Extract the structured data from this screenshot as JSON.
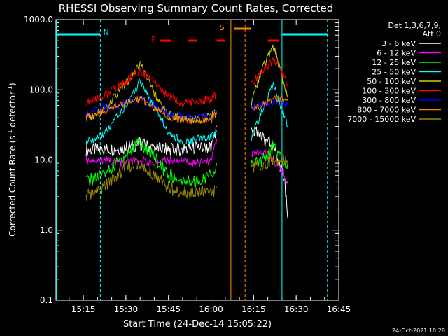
{
  "chart_data": {
    "type": "line",
    "title": "RHESSI Observing Summary Count Rates, Corrected",
    "xlabel": "Start Time (24-Dec-14 15:05:22)",
    "ylabel": "Corrected Count Rate (s",
    "ylabel_sup": "-1",
    "ylabel_mid": " detector",
    "ylabel_end": ")",
    "footer": "24-Oct-2021 10:28",
    "y_scale": "log",
    "ylim": [
      0.1,
      1000
    ],
    "xlim": [
      "15:05:22",
      "16:45"
    ],
    "x_ticks": [
      "15:15",
      "15:30",
      "15:45",
      "16:00",
      "16:15",
      "16:30",
      "16:45"
    ],
    "y_ticks": [
      "0.1",
      "1.0",
      "10.0",
      "100.0",
      "1000.0"
    ],
    "legend_header": "Det 1,3,6,7,9,",
    "legend_header2": "Att 0",
    "legend_position": "right",
    "series": [
      {
        "name": "3 - 6 keV",
        "color": "#ffffff",
        "x": [
          "15:16",
          "15:22",
          "15:30",
          "15:35",
          "15:40",
          "15:45",
          "15:50",
          "15:55",
          "16:00",
          "16:02",
          "16:14",
          "16:18",
          "16:22",
          "16:26",
          "16:27"
        ],
        "y": [
          14,
          14,
          15,
          17,
          15,
          14,
          14,
          15,
          15,
          30,
          28,
          20,
          16,
          5,
          1.5
        ]
      },
      {
        "name": "6 - 12 keV",
        "color": "#ff00ff",
        "x": [
          "15:16",
          "15:22",
          "15:30",
          "15:35",
          "15:40",
          "15:45",
          "15:50",
          "15:55",
          "16:00",
          "16:02",
          "16:14",
          "16:18",
          "16:22",
          "16:26",
          "16:27"
        ],
        "y": [
          10,
          10,
          9,
          10,
          9,
          10,
          10,
          9,
          10,
          20,
          12,
          14,
          10,
          6,
          5
        ]
      },
      {
        "name": "12 - 25 keV",
        "color": "#00ff00",
        "x": [
          "15:16",
          "15:22",
          "15:30",
          "15:35",
          "15:40",
          "15:45",
          "15:50",
          "15:55",
          "16:00",
          "16:02",
          "16:14",
          "16:18",
          "16:22",
          "16:26",
          "16:27"
        ],
        "y": [
          5,
          6,
          12,
          18,
          11,
          6,
          5,
          5,
          6,
          9,
          8,
          10,
          16,
          9,
          9
        ]
      },
      {
        "name": "25 - 50 keV",
        "color": "#00ffff",
        "x": [
          "15:16",
          "15:22",
          "15:30",
          "15:35",
          "15:40",
          "15:45",
          "15:50",
          "15:55",
          "16:00",
          "16:02",
          "16:14",
          "16:18",
          "16:22",
          "16:26",
          "16:27"
        ],
        "y": [
          18,
          22,
          60,
          130,
          60,
          25,
          18,
          20,
          22,
          25,
          20,
          50,
          120,
          40,
          30
        ]
      },
      {
        "name": "50 - 100 keV",
        "color": "#d2d200",
        "x": [
          "15:16",
          "15:22",
          "15:30",
          "15:35",
          "15:40",
          "15:45",
          "15:50",
          "15:55",
          "16:00",
          "16:02",
          "16:14",
          "16:18",
          "16:22",
          "16:26",
          "16:27"
        ],
        "y": [
          38,
          50,
          120,
          240,
          90,
          45,
          38,
          38,
          42,
          50,
          60,
          200,
          420,
          110,
          80
        ]
      },
      {
        "name": "100 - 300 keV",
        "color": "#ff0000",
        "x": [
          "15:16",
          "15:22",
          "15:30",
          "15:35",
          "15:40",
          "15:45",
          "15:50",
          "15:55",
          "16:00",
          "16:02",
          "16:14",
          "16:18",
          "16:22",
          "16:26",
          "16:27"
        ],
        "y": [
          65,
          80,
          130,
          190,
          130,
          80,
          65,
          68,
          75,
          85,
          120,
          180,
          260,
          150,
          120
        ]
      },
      {
        "name": "300 - 800 keV",
        "color": "#0000ff",
        "x": [
          "15:16",
          "15:22",
          "15:30",
          "15:35",
          "15:40",
          "15:45",
          "15:50",
          "15:55",
          "16:00",
          "16:02",
          "16:14",
          "16:18",
          "16:22",
          "16:26",
          "16:27"
        ],
        "y": [
          45,
          55,
          65,
          75,
          60,
          45,
          42,
          40,
          42,
          45,
          55,
          62,
          68,
          65,
          63
        ]
      },
      {
        "name": "800 - 7000 keV",
        "color": "#ff8800",
        "x": [
          "15:16",
          "15:22",
          "15:30",
          "15:35",
          "15:40",
          "15:45",
          "15:50",
          "15:55",
          "16:00",
          "16:02",
          "16:14",
          "16:18",
          "16:22",
          "16:26",
          "16:27"
        ],
        "y": [
          40,
          50,
          65,
          75,
          55,
          42,
          38,
          36,
          38,
          45,
          50,
          60,
          75,
          75,
          75
        ]
      },
      {
        "name": "7000 - 15000 keV",
        "color": "#998800",
        "x": [
          "15:16",
          "15:22",
          "15:30",
          "15:35",
          "15:40",
          "15:45",
          "15:50",
          "15:55",
          "16:00",
          "16:02",
          "16:14",
          "16:18",
          "16:22",
          "16:26",
          "16:27"
        ],
        "y": [
          3,
          4,
          8,
          9,
          6,
          4,
          3.5,
          3.5,
          3.5,
          4,
          8,
          9,
          10,
          10,
          9
        ]
      }
    ],
    "annotations": [
      {
        "text": "N",
        "color": "#00ffff"
      },
      {
        "text": "F",
        "color": "#ff0000"
      },
      {
        "text": "S",
        "color": "#ff8800"
      }
    ]
  }
}
